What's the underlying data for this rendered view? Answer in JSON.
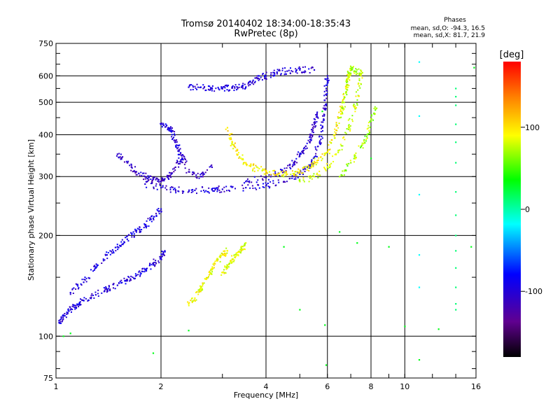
{
  "chart_data": {
    "type": "scatter",
    "title": "Tromsø 20140402 18:34:00-18:35:43",
    "subtitle": "RwPretec (8p)",
    "xlabel": "Frequency [MHz]",
    "ylabel": "Stationary phase Virtual Height [km]",
    "x_scale": "log",
    "y_scale": "log",
    "xlim": [
      1,
      16
    ],
    "ylim": [
      75,
      750
    ],
    "x_ticks": [
      1,
      2,
      4,
      6,
      8,
      10,
      16
    ],
    "x_tick_labels": [
      "1",
      "2",
      "4",
      "6",
      "8",
      "10",
      "16"
    ],
    "y_ticks": [
      75,
      100,
      200,
      300,
      400,
      500,
      600,
      750
    ],
    "y_tick_labels": [
      "75",
      "100",
      "200",
      "300",
      "400",
      "500",
      "600",
      "750"
    ],
    "grid": true,
    "stats": {
      "heading": "Phases",
      "line_o": "mean, sd,O: -94.3, 16.5",
      "line_x": "mean, sd,X:  81.7, 21.9"
    },
    "colorbar": {
      "label": "[deg]",
      "range": [
        -180,
        180
      ],
      "ticks": [
        100,
        0,
        -100
      ],
      "tick_labels": [
        "100",
        "0",
        "-100"
      ]
    },
    "traces": [
      {
        "name": "o-low",
        "phase": -100,
        "points": [
          [
            1.02,
            110
          ],
          [
            1.05,
            115
          ],
          [
            1.1,
            120
          ],
          [
            1.15,
            124
          ],
          [
            1.2,
            128
          ],
          [
            1.3,
            133
          ],
          [
            1.4,
            138
          ],
          [
            1.5,
            142
          ],
          [
            1.6,
            147
          ],
          [
            1.7,
            152
          ],
          [
            1.8,
            158
          ],
          [
            1.9,
            165
          ],
          [
            2.0,
            172
          ],
          [
            2.05,
            180
          ]
        ]
      },
      {
        "name": "o-low-upper",
        "phase": -95,
        "points": [
          [
            1.1,
            135
          ],
          [
            1.2,
            145
          ],
          [
            1.3,
            160
          ],
          [
            1.4,
            175
          ],
          [
            1.5,
            185
          ],
          [
            1.6,
            195
          ],
          [
            1.7,
            205
          ],
          [
            1.8,
            215
          ],
          [
            1.9,
            225
          ],
          [
            2.0,
            240
          ]
        ]
      },
      {
        "name": "o-f",
        "phase": -100,
        "points": [
          [
            1.8,
            285
          ],
          [
            2.0,
            278
          ],
          [
            2.2,
            274
          ],
          [
            2.5,
            273
          ],
          [
            2.8,
            274
          ],
          [
            3.0,
            275
          ],
          [
            3.5,
            278
          ],
          [
            4.0,
            282
          ],
          [
            4.5,
            290
          ],
          [
            5.0,
            305
          ],
          [
            5.3,
            320
          ],
          [
            5.5,
            340
          ],
          [
            5.7,
            380
          ],
          [
            5.8,
            420
          ],
          [
            5.9,
            480
          ],
          [
            5.95,
            550
          ],
          [
            6.0,
            600
          ]
        ]
      },
      {
        "name": "o-f-upper",
        "phase": -105,
        "points": [
          [
            3.5,
            290
          ],
          [
            4.0,
            298
          ],
          [
            4.5,
            310
          ],
          [
            4.8,
            330
          ],
          [
            5.0,
            350
          ],
          [
            5.2,
            370
          ],
          [
            5.4,
            400
          ],
          [
            5.5,
            430
          ],
          [
            5.6,
            460
          ]
        ]
      },
      {
        "name": "o-scatter-mid",
        "phase": -110,
        "points": [
          [
            1.5,
            350
          ],
          [
            1.6,
            330
          ],
          [
            1.7,
            310
          ],
          [
            1.8,
            300
          ],
          [
            1.9,
            295
          ],
          [
            2.0,
            290
          ],
          [
            2.1,
            300
          ],
          [
            2.2,
            320
          ],
          [
            2.3,
            340
          ],
          [
            2.4,
            310
          ],
          [
            2.6,
            300
          ],
          [
            2.8,
            320
          ]
        ]
      },
      {
        "name": "o-scatter-2MHz",
        "phase": -100,
        "points": [
          [
            2.0,
            430
          ],
          [
            2.1,
            420
          ],
          [
            2.15,
            410
          ],
          [
            2.2,
            380
          ],
          [
            2.25,
            360
          ],
          [
            2.3,
            340
          ]
        ]
      },
      {
        "name": "o-high",
        "phase": -100,
        "points": [
          [
            2.4,
            555
          ],
          [
            2.6,
            555
          ],
          [
            2.8,
            552
          ],
          [
            3.0,
            550
          ],
          [
            3.2,
            552
          ],
          [
            3.4,
            555
          ],
          [
            3.6,
            565
          ],
          [
            3.8,
            590
          ],
          [
            4.0,
            600
          ],
          [
            4.3,
            615
          ],
          [
            4.6,
            620
          ],
          [
            5.0,
            625
          ],
          [
            5.5,
            625
          ]
        ]
      },
      {
        "name": "x-low",
        "phase": 90,
        "points": [
          [
            2.4,
            125
          ],
          [
            2.5,
            130
          ],
          [
            2.6,
            138
          ],
          [
            2.7,
            148
          ],
          [
            2.8,
            158
          ],
          [
            2.9,
            168
          ],
          [
            3.0,
            175
          ],
          [
            3.1,
            180
          ]
        ]
      },
      {
        "name": "x-low-2",
        "phase": 85,
        "points": [
          [
            3.0,
            155
          ],
          [
            3.1,
            162
          ],
          [
            3.2,
            170
          ],
          [
            3.3,
            175
          ],
          [
            3.4,
            180
          ],
          [
            3.5,
            190
          ]
        ]
      },
      {
        "name": "x-f",
        "phase": 95,
        "points": [
          [
            3.1,
            420
          ],
          [
            3.2,
            380
          ],
          [
            3.3,
            350
          ],
          [
            3.5,
            330
          ],
          [
            3.7,
            318
          ],
          [
            4.0,
            310
          ],
          [
            4.3,
            305
          ],
          [
            4.6,
            305
          ],
          [
            5.0,
            310
          ],
          [
            5.3,
            320
          ],
          [
            5.6,
            335
          ],
          [
            6.0,
            355
          ],
          [
            6.3,
            400
          ],
          [
            6.5,
            450
          ],
          [
            6.7,
            520
          ],
          [
            6.9,
            600
          ]
        ]
      },
      {
        "name": "x-f-2",
        "phase": 80,
        "points": [
          [
            5.0,
            290
          ],
          [
            5.5,
            300
          ],
          [
            6.0,
            320
          ],
          [
            6.5,
            360
          ],
          [
            6.9,
            420
          ],
          [
            7.2,
            480
          ],
          [
            7.4,
            560
          ],
          [
            7.5,
            620
          ]
        ]
      },
      {
        "name": "x-f-3",
        "phase": 70,
        "points": [
          [
            6.5,
            300
          ],
          [
            7.0,
            330
          ],
          [
            7.5,
            370
          ],
          [
            7.8,
            400
          ],
          [
            8.0,
            440
          ],
          [
            8.3,
            480
          ]
        ]
      },
      {
        "name": "x-high",
        "phase": 75,
        "points": [
          [
            6.5,
            450
          ],
          [
            6.7,
            500
          ],
          [
            6.8,
            560
          ],
          [
            6.9,
            600
          ],
          [
            7.0,
            630
          ],
          [
            7.2,
            620
          ],
          [
            7.5,
            610
          ]
        ]
      },
      {
        "name": "column-14",
        "phase": 10,
        "points": [
          [
            14.0,
            120
          ],
          [
            14.0,
            125
          ],
          [
            14.0,
            140
          ],
          [
            14.0,
            160
          ],
          [
            14.0,
            180
          ],
          [
            14.0,
            200
          ],
          [
            14.0,
            230
          ],
          [
            14.0,
            270
          ],
          [
            14.0,
            330
          ],
          [
            14.0,
            380
          ],
          [
            14.0,
            430
          ],
          [
            14.0,
            490
          ],
          [
            14.0,
            520
          ],
          [
            14.0,
            550
          ]
        ]
      },
      {
        "name": "column-11",
        "phase": -20,
        "points": [
          [
            11.0,
            140
          ],
          [
            11.0,
            175
          ],
          [
            11.0,
            265
          ],
          [
            11.0,
            455
          ],
          [
            11.0,
            660
          ]
        ]
      },
      {
        "name": "sparse",
        "phase": 30,
        "points": [
          [
            1.05,
            100
          ],
          [
            1.1,
            102
          ],
          [
            1.9,
            89
          ],
          [
            2.4,
            104
          ],
          [
            4.5,
            185
          ],
          [
            5.0,
            120
          ],
          [
            5.8,
            470
          ],
          [
            5.9,
            108
          ],
          [
            5.95,
            82
          ],
          [
            6.5,
            205
          ],
          [
            7.3,
            190
          ],
          [
            8.0,
            340
          ],
          [
            9.0,
            185
          ],
          [
            10.0,
            107
          ],
          [
            11.0,
            85
          ],
          [
            12.5,
            105
          ],
          [
            15.5,
            185
          ],
          [
            15.8,
            635
          ]
        ]
      }
    ]
  }
}
